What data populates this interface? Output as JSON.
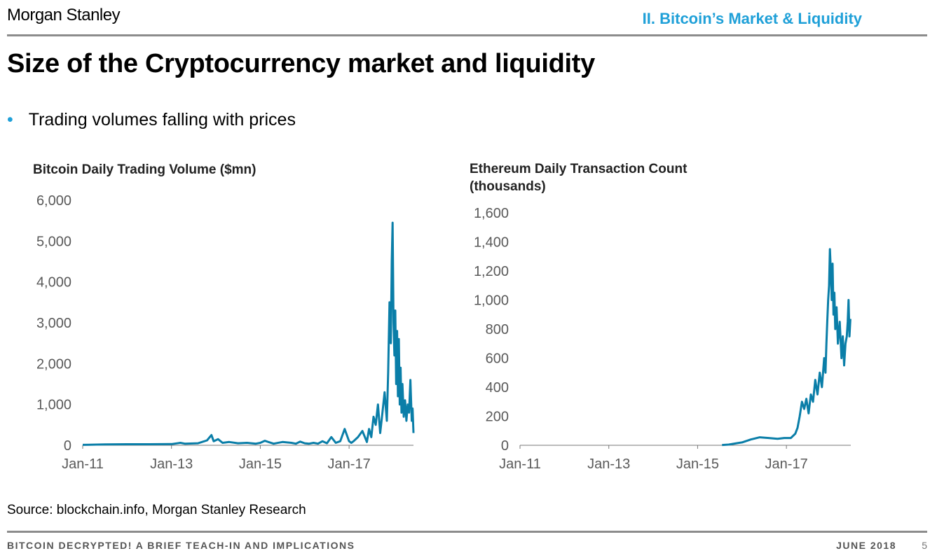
{
  "header": {
    "brand": "Morgan Stanley",
    "section": "II. Bitcoin’s Market & Liquidity"
  },
  "slide": {
    "title": "Size of the Cryptocurrency market and liquidity",
    "bullet": "Trading volumes falling with prices",
    "source": "Source: blockchain.info, Morgan Stanley Research"
  },
  "footer": {
    "left": "BITCOIN DECRYPTED! A BRIEF TEACH-IN AND IMPLICATIONS",
    "date": "JUNE 2018",
    "page": "5"
  },
  "colors": {
    "series": "#0a7ea8",
    "accent": "#1fa0d8",
    "axis": "#777777"
  },
  "chart_data": [
    {
      "type": "line",
      "title": "Bitcoin Daily Trading Volume ($mn)",
      "xlabel": "",
      "ylabel": "",
      "ylim": [
        0,
        6000
      ],
      "yticks": [
        0,
        1000,
        2000,
        3000,
        4000,
        5000,
        6000
      ],
      "ytick_labels": [
        "0",
        "1,000",
        "2,000",
        "3,000",
        "4,000",
        "5,000",
        "6,000"
      ],
      "xlim": [
        2011.0,
        2018.45
      ],
      "xticks": [
        2011,
        2013,
        2015,
        2017
      ],
      "xtick_labels": [
        "Jan-11",
        "Jan-13",
        "Jan-15",
        "Jan-17"
      ],
      "series": [
        {
          "name": "Bitcoin Daily Trading Volume",
          "x": [
            2011.0,
            2011.5,
            2012.0,
            2012.5,
            2013.0,
            2013.2,
            2013.3,
            2013.6,
            2013.8,
            2013.9,
            2013.95,
            2014.05,
            2014.15,
            2014.3,
            2014.5,
            2014.7,
            2014.9,
            2015.0,
            2015.1,
            2015.3,
            2015.5,
            2015.7,
            2015.8,
            2015.9,
            2016.0,
            2016.1,
            2016.2,
            2016.3,
            2016.4,
            2016.5,
            2016.6,
            2016.7,
            2016.8,
            2016.9,
            2017.0,
            2017.05,
            2017.1,
            2017.2,
            2017.3,
            2017.4,
            2017.45,
            2017.5,
            2017.55,
            2017.6,
            2017.65,
            2017.7,
            2017.75,
            2017.8,
            2017.85,
            2017.88,
            2017.91,
            2017.94,
            2017.96,
            2017.98,
            2018.0,
            2018.02,
            2018.04,
            2018.06,
            2018.08,
            2018.1,
            2018.12,
            2018.14,
            2018.16,
            2018.18,
            2018.2,
            2018.23,
            2018.26,
            2018.29,
            2018.32,
            2018.35,
            2018.38,
            2018.41,
            2018.43,
            2018.45
          ],
          "values": [
            10,
            20,
            25,
            25,
            30,
            60,
            40,
            50,
            120,
            250,
            100,
            150,
            60,
            80,
            50,
            60,
            40,
            60,
            110,
            40,
            80,
            60,
            40,
            90,
            50,
            40,
            60,
            40,
            100,
            50,
            200,
            60,
            100,
            400,
            100,
            60,
            100,
            200,
            350,
            80,
            400,
            200,
            700,
            500,
            1000,
            300,
            800,
            1300,
            600,
            1800,
            3500,
            2500,
            4500,
            5450,
            3000,
            2200,
            3300,
            1500,
            2800,
            1200,
            2600,
            1000,
            1900,
            800,
            1500,
            700,
            1100,
            600,
            1000,
            800,
            1600,
            600,
            900,
            300
          ]
        }
      ]
    },
    {
      "type": "line",
      "title": "Ethereum Daily Transaction Count (thousands)",
      "title_lines": [
        "Ethereum Daily Transaction Count",
        "(thousands)"
      ],
      "xlabel": "",
      "ylabel": "",
      "ylim": [
        0,
        1600
      ],
      "yticks": [
        0,
        200,
        400,
        600,
        800,
        1000,
        1200,
        1400,
        1600
      ],
      "ytick_labels": [
        "0",
        "200",
        "400",
        "600",
        "800",
        "1,000",
        "1,200",
        "1,400",
        "1,600"
      ],
      "xlim": [
        2011.0,
        2018.45
      ],
      "xticks": [
        2011,
        2013,
        2015,
        2017
      ],
      "xtick_labels": [
        "Jan-11",
        "Jan-13",
        "Jan-15",
        "Jan-17"
      ],
      "series": [
        {
          "name": "Ethereum Daily Transaction Count",
          "x": [
            2015.55,
            2015.7,
            2015.9,
            2016.0,
            2016.2,
            2016.4,
            2016.6,
            2016.8,
            2016.95,
            2017.1,
            2017.2,
            2017.25,
            2017.3,
            2017.35,
            2017.4,
            2017.45,
            2017.5,
            2017.55,
            2017.6,
            2017.65,
            2017.7,
            2017.75,
            2017.8,
            2017.85,
            2017.88,
            2017.9,
            2017.92,
            2017.94,
            2017.96,
            2017.98,
            2018.0,
            2018.02,
            2018.04,
            2018.06,
            2018.08,
            2018.1,
            2018.13,
            2018.16,
            2018.2,
            2018.24,
            2018.27,
            2018.3,
            2018.33,
            2018.36,
            2018.38,
            2018.4,
            2018.42,
            2018.44
          ],
          "values": [
            2,
            5,
            15,
            20,
            40,
            55,
            50,
            45,
            50,
            50,
            80,
            120,
            200,
            300,
            250,
            320,
            220,
            350,
            300,
            450,
            350,
            500,
            400,
            600,
            500,
            700,
            850,
            1000,
            1100,
            1350,
            1200,
            1000,
            1250,
            900,
            1050,
            800,
            950,
            700,
            850,
            600,
            750,
            550,
            700,
            750,
            850,
            1000,
            750,
            870
          ]
        }
      ]
    }
  ]
}
